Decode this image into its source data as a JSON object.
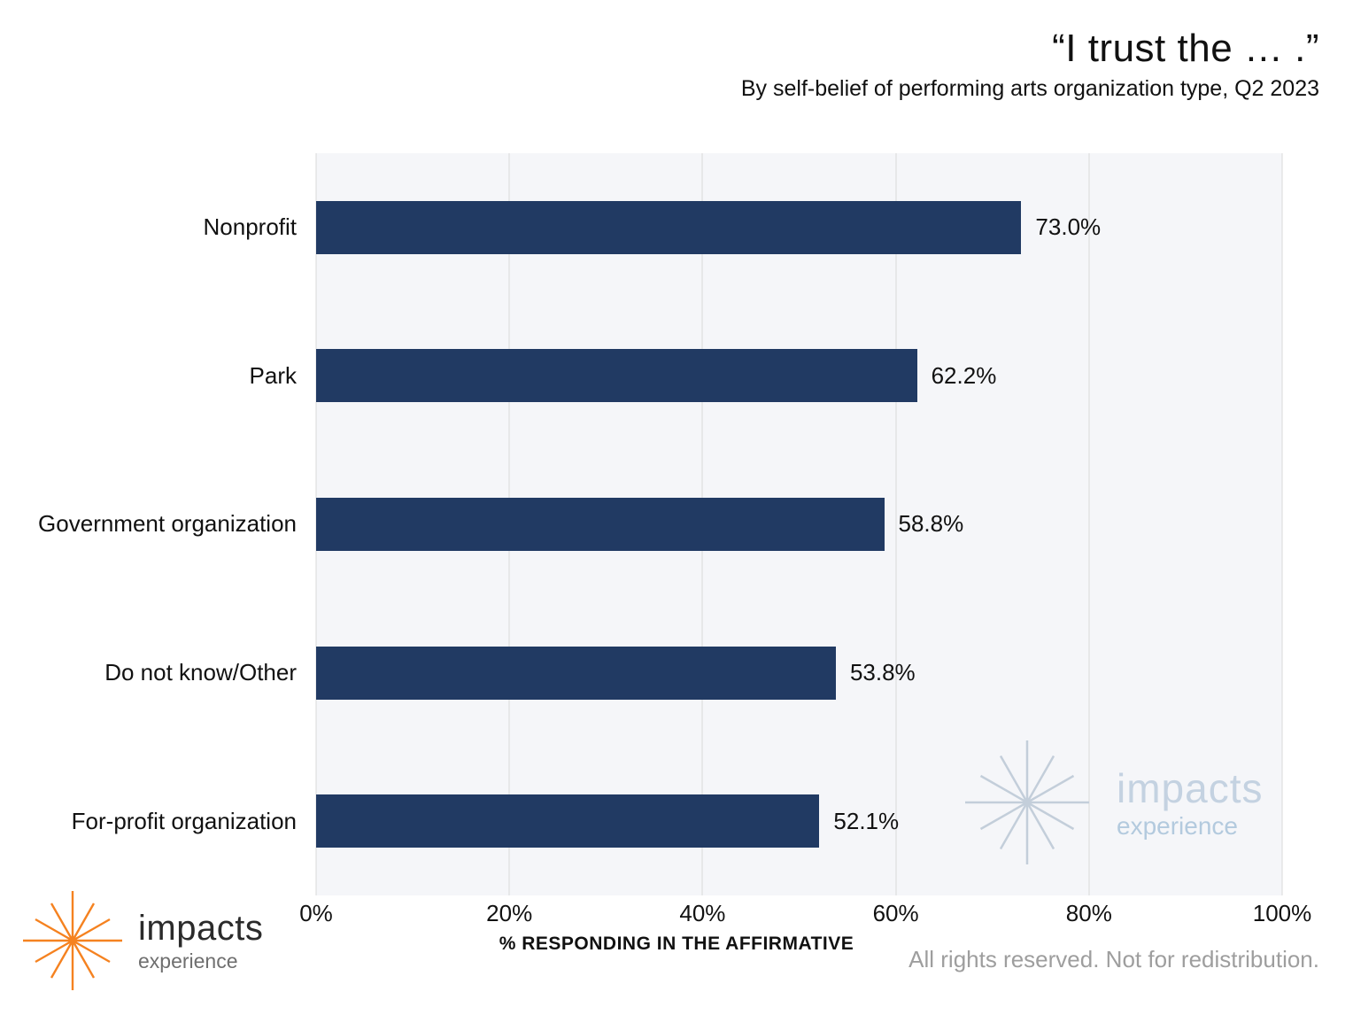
{
  "header": {
    "title": "“I trust the … .”",
    "subtitle": "By self-belief of performing arts organization type, Q2 2023"
  },
  "chart_data": {
    "type": "bar",
    "orientation": "horizontal",
    "title": "“I trust the … .”",
    "subtitle": "By self-belief of performing arts organization type, Q2 2023",
    "categories": [
      "Nonprofit",
      "Park",
      "Government organization",
      "Do not know/Other",
      "For-profit organization"
    ],
    "values": [
      73.0,
      62.2,
      58.8,
      53.8,
      52.1
    ],
    "value_labels": [
      "73.0%",
      "62.2%",
      "58.8%",
      "53.8%",
      "52.1%"
    ],
    "xlabel": "% RESPONDING IN THE AFFIRMATIVE",
    "ylabel": "",
    "xlim": [
      0,
      100
    ],
    "xticks": [
      "0%",
      "20%",
      "40%",
      "60%",
      "80%",
      "100%"
    ],
    "grid": "vertical",
    "legend": "none",
    "bar_color": "#213a63",
    "plot_bg": "#f5f6f9",
    "gridline_color": "#d9d9d9"
  },
  "watermark": {
    "brand": "impacts",
    "sub": "experience",
    "color": "#c4d2e1"
  },
  "logo": {
    "brand": "impacts",
    "sub": "experience",
    "accent_color": "#f58220"
  },
  "footer": {
    "rights": "All rights reserved. Not for redistribution."
  }
}
